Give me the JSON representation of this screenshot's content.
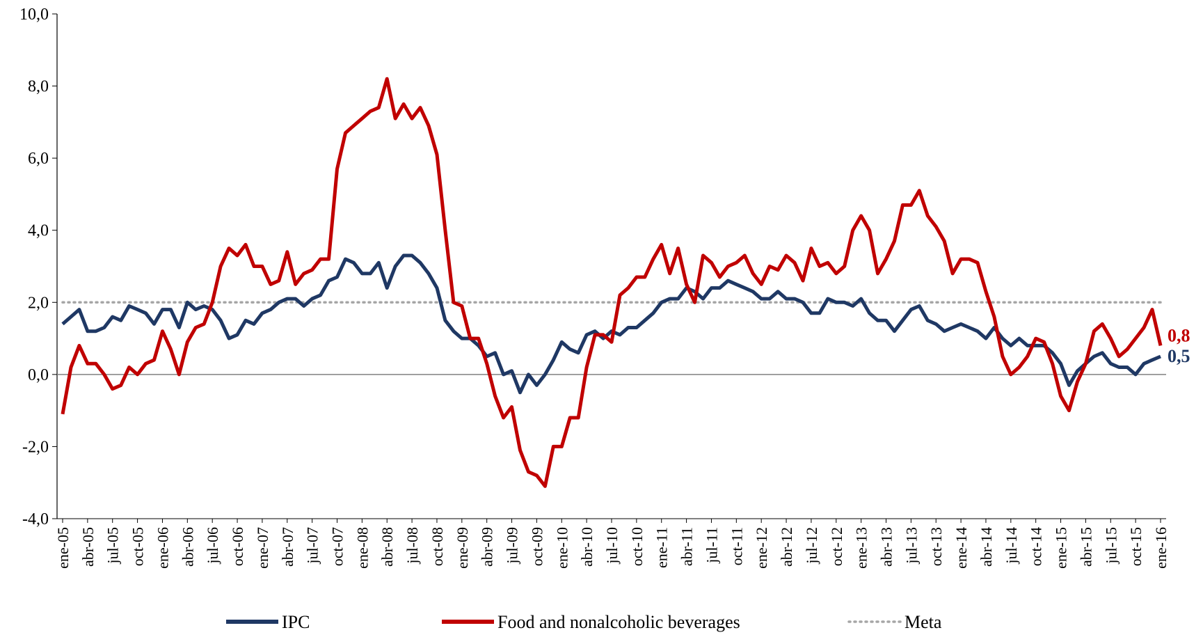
{
  "chart_data": {
    "type": "line",
    "categories": [
      "ene-05",
      null,
      null,
      "abr-05",
      null,
      null,
      "jul-05",
      null,
      null,
      "oct-05",
      null,
      null,
      "ene-06",
      null,
      null,
      "abr-06",
      null,
      null,
      "jul-06",
      null,
      null,
      "oct-06",
      null,
      null,
      "ene-07",
      null,
      null,
      "abr-07",
      null,
      null,
      "jul-07",
      null,
      null,
      "oct-07",
      null,
      null,
      "ene-08",
      null,
      null,
      "abr-08",
      null,
      null,
      "jul-08",
      null,
      null,
      "oct-08",
      null,
      null,
      "ene-09",
      null,
      null,
      "abr-09",
      null,
      null,
      "jul-09",
      null,
      null,
      "oct-09",
      null,
      null,
      "ene-10",
      null,
      null,
      "abr-10",
      null,
      null,
      "jul-10",
      null,
      null,
      "oct-10",
      null,
      null,
      "ene-11",
      null,
      null,
      "abr-11",
      null,
      null,
      "jul-11",
      null,
      null,
      "oct-11",
      null,
      null,
      "ene-12",
      null,
      null,
      "abr-12",
      null,
      null,
      "jul-12",
      null,
      null,
      "oct-12",
      null,
      null,
      "ene-13",
      null,
      null,
      "abr-13",
      null,
      null,
      "jul-13",
      null,
      null,
      "oct-13",
      null,
      null,
      "ene-14",
      null,
      null,
      "abr-14",
      null,
      null,
      "jul-14",
      null,
      null,
      "oct-14",
      null,
      null,
      "ene-15",
      null,
      null,
      "abr-15",
      null,
      null,
      "jul-15",
      null,
      null,
      "oct-15",
      null,
      null,
      "ene-16"
    ],
    "series": [
      {
        "name": "IPC",
        "color": "#1f3864",
        "style": "solid",
        "values": [
          1.4,
          1.6,
          1.8,
          1.2,
          1.2,
          1.3,
          1.6,
          1.5,
          1.9,
          1.8,
          1.7,
          1.4,
          1.8,
          1.8,
          1.3,
          2.0,
          1.8,
          1.9,
          1.8,
          1.5,
          1.0,
          1.1,
          1.5,
          1.4,
          1.7,
          1.8,
          2.0,
          2.1,
          2.1,
          1.9,
          2.1,
          2.2,
          2.6,
          2.7,
          3.2,
          3.1,
          2.8,
          2.8,
          3.1,
          2.4,
          3.0,
          3.3,
          3.3,
          3.1,
          2.8,
          2.4,
          1.5,
          1.2,
          1.0,
          1.0,
          0.8,
          0.5,
          0.6,
          0.0,
          0.1,
          -0.5,
          0.0,
          -0.3,
          0.0,
          0.4,
          0.9,
          0.7,
          0.6,
          1.1,
          1.2,
          1.0,
          1.2,
          1.1,
          1.3,
          1.3,
          1.5,
          1.7,
          2.0,
          2.1,
          2.1,
          2.4,
          2.3,
          2.1,
          2.4,
          2.4,
          2.6,
          2.5,
          2.4,
          2.3,
          2.1,
          2.1,
          2.3,
          2.1,
          2.1,
          2.0,
          1.7,
          1.7,
          2.1,
          2.0,
          2.0,
          1.9,
          2.1,
          1.7,
          1.5,
          1.5,
          1.2,
          1.5,
          1.8,
          1.9,
          1.5,
          1.4,
          1.2,
          1.3,
          1.4,
          1.3,
          1.2,
          1.0,
          1.3,
          1.0,
          0.8,
          1.0,
          0.8,
          0.8,
          0.8,
          0.6,
          0.3,
          -0.3,
          0.1,
          0.3,
          0.5,
          0.6,
          0.3,
          0.2,
          0.2,
          0.0,
          0.3,
          0.4,
          0.5
        ],
        "value_labels": [
          null,
          null,
          null,
          null,
          null,
          null,
          null,
          null,
          null,
          null,
          null,
          null,
          null,
          null,
          null,
          null,
          null,
          null,
          null,
          null,
          null,
          null,
          null,
          null,
          null,
          null,
          null,
          null,
          null,
          null,
          null,
          null,
          null,
          null,
          null,
          null,
          null,
          null,
          null,
          null,
          null,
          null,
          null,
          null,
          null,
          null,
          null,
          null,
          null,
          null,
          null,
          null,
          null,
          null,
          null,
          null,
          null,
          null,
          null,
          null,
          null,
          null,
          null,
          null,
          null,
          null,
          null,
          null,
          null,
          null,
          null,
          null,
          null,
          null,
          null,
          null,
          null,
          null,
          null,
          null,
          null,
          null,
          null,
          null,
          null,
          null,
          null,
          null,
          null,
          null,
          null,
          null,
          null,
          null,
          null,
          null,
          null,
          null,
          null,
          null,
          null,
          null,
          null,
          null,
          null,
          null,
          null,
          null,
          null,
          null,
          null,
          null,
          null,
          null,
          null,
          null,
          null,
          null,
          null,
          null,
          null,
          null,
          null,
          null,
          null,
          null,
          null,
          null,
          null,
          null,
          null,
          null,
          "0,5"
        ]
      },
      {
        "name": "Food and nonalcoholic beverages",
        "color": "#c00000",
        "style": "solid",
        "values": [
          -1.1,
          0.2,
          0.8,
          0.3,
          0.3,
          0.0,
          -0.4,
          -0.3,
          0.2,
          0.0,
          0.3,
          0.4,
          1.2,
          0.7,
          0.0,
          0.9,
          1.3,
          1.4,
          2.0,
          3.0,
          3.5,
          3.3,
          3.6,
          3.0,
          3.0,
          2.5,
          2.6,
          3.4,
          2.5,
          2.8,
          2.9,
          3.2,
          3.2,
          5.7,
          6.7,
          6.9,
          7.1,
          7.3,
          7.4,
          8.2,
          7.1,
          7.5,
          7.1,
          7.4,
          6.9,
          6.1,
          4.0,
          2.0,
          1.9,
          1.0,
          1.0,
          0.3,
          -0.6,
          -1.2,
          -0.9,
          -2.1,
          -2.7,
          -2.8,
          -3.1,
          -2.0,
          -2.0,
          -1.2,
          -1.2,
          0.2,
          1.1,
          1.1,
          0.9,
          2.2,
          2.4,
          2.7,
          2.7,
          3.2,
          3.6,
          2.8,
          3.5,
          2.5,
          2.0,
          3.3,
          3.1,
          2.7,
          3.0,
          3.1,
          3.3,
          2.8,
          2.5,
          3.0,
          2.9,
          3.3,
          3.1,
          2.6,
          3.5,
          3.0,
          3.1,
          2.8,
          3.0,
          4.0,
          4.4,
          4.0,
          2.8,
          3.2,
          3.7,
          4.7,
          4.7,
          5.1,
          4.4,
          4.1,
          3.7,
          2.8,
          3.2,
          3.2,
          3.1,
          2.3,
          1.6,
          0.5,
          0.0,
          0.2,
          0.5,
          1.0,
          0.9,
          0.3,
          -0.6,
          -1.0,
          -0.2,
          0.3,
          1.2,
          1.4,
          1.0,
          0.5,
          0.7,
          1.0,
          1.3,
          1.8,
          0.8
        ],
        "value_labels": [
          null,
          null,
          null,
          null,
          null,
          null,
          null,
          null,
          null,
          null,
          null,
          null,
          null,
          null,
          null,
          null,
          null,
          null,
          null,
          null,
          null,
          null,
          null,
          null,
          null,
          null,
          null,
          null,
          null,
          null,
          null,
          null,
          null,
          null,
          null,
          null,
          null,
          null,
          null,
          null,
          null,
          null,
          null,
          null,
          null,
          null,
          null,
          null,
          null,
          null,
          null,
          null,
          null,
          null,
          null,
          null,
          null,
          null,
          null,
          null,
          null,
          null,
          null,
          null,
          null,
          null,
          null,
          null,
          null,
          null,
          null,
          null,
          null,
          null,
          null,
          null,
          null,
          null,
          null,
          null,
          null,
          null,
          null,
          null,
          null,
          null,
          null,
          null,
          null,
          null,
          null,
          null,
          null,
          null,
          null,
          null,
          null,
          null,
          null,
          null,
          null,
          null,
          null,
          null,
          null,
          null,
          null,
          null,
          null,
          null,
          null,
          null,
          null,
          null,
          null,
          null,
          null,
          null,
          null,
          null,
          null,
          null,
          null,
          null,
          null,
          null,
          null,
          null,
          null,
          null,
          null,
          null,
          "0,8"
        ]
      },
      {
        "name": "Meta",
        "color": "#a6a6a6",
        "style": "dotted",
        "values": [
          2,
          2,
          2,
          2,
          2,
          2,
          2,
          2,
          2,
          2,
          2,
          2,
          2,
          2,
          2,
          2,
          2,
          2,
          2,
          2,
          2,
          2,
          2,
          2,
          2,
          2,
          2,
          2,
          2,
          2,
          2,
          2,
          2,
          2,
          2,
          2,
          2,
          2,
          2,
          2,
          2,
          2,
          2,
          2,
          2,
          2,
          2,
          2,
          2,
          2,
          2,
          2,
          2,
          2,
          2,
          2,
          2,
          2,
          2,
          2,
          2,
          2,
          2,
          2,
          2,
          2,
          2,
          2,
          2,
          2,
          2,
          2,
          2,
          2,
          2,
          2,
          2,
          2,
          2,
          2,
          2,
          2,
          2,
          2,
          2,
          2,
          2,
          2,
          2,
          2,
          2,
          2,
          2,
          2,
          2,
          2,
          2,
          2,
          2,
          2,
          2,
          2,
          2,
          2,
          2,
          2,
          2,
          2,
          2,
          2,
          2,
          2,
          2,
          2,
          2,
          2,
          2,
          2,
          2,
          2,
          2,
          2,
          2,
          2,
          2,
          2,
          2,
          2,
          2,
          2,
          2,
          2,
          2
        ]
      }
    ],
    "ylim": [
      -4,
      10
    ],
    "yticks": [
      {
        "value": -4,
        "label": "-4,0"
      },
      {
        "value": -2,
        "label": "-2,0"
      },
      {
        "value": 0,
        "label": "0,0"
      },
      {
        "value": 2,
        "label": "2,0"
      },
      {
        "value": 4,
        "label": "4,0"
      },
      {
        "value": 6,
        "label": "6,0"
      },
      {
        "value": 8,
        "label": "8,0"
      },
      {
        "value": 10,
        "label": "10,0"
      }
    ],
    "grid": false,
    "legend": "bottom"
  }
}
